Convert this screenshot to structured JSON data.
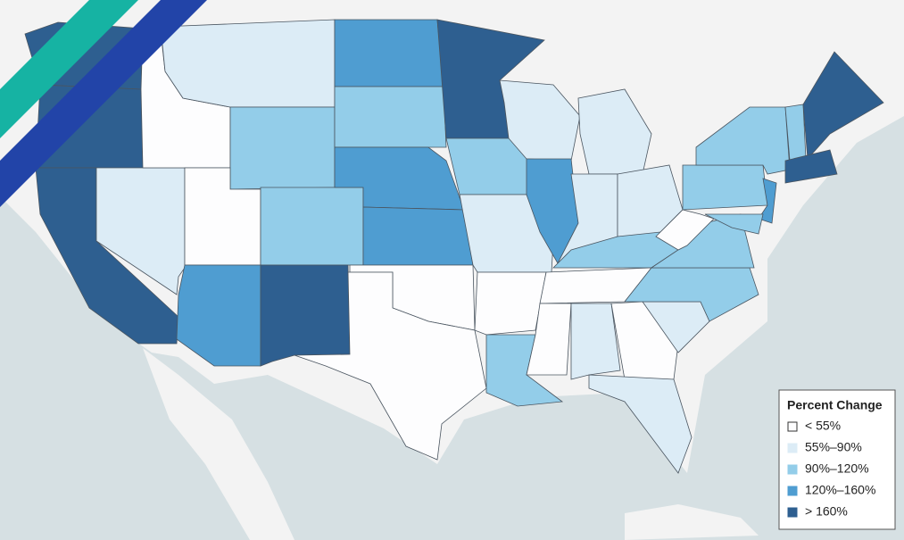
{
  "legend": {
    "title": "Percent Change",
    "items": [
      {
        "label": "< 55%",
        "color": "#fdfdfe"
      },
      {
        "label": "55%–90%",
        "color": "#dcecf6"
      },
      {
        "label": "90%–120%",
        "color": "#93cde9"
      },
      {
        "label": "120%–160%",
        "color": "#4f9dd1"
      },
      {
        "label": "> 160%",
        "color": "#2e5f90"
      }
    ]
  }
}
